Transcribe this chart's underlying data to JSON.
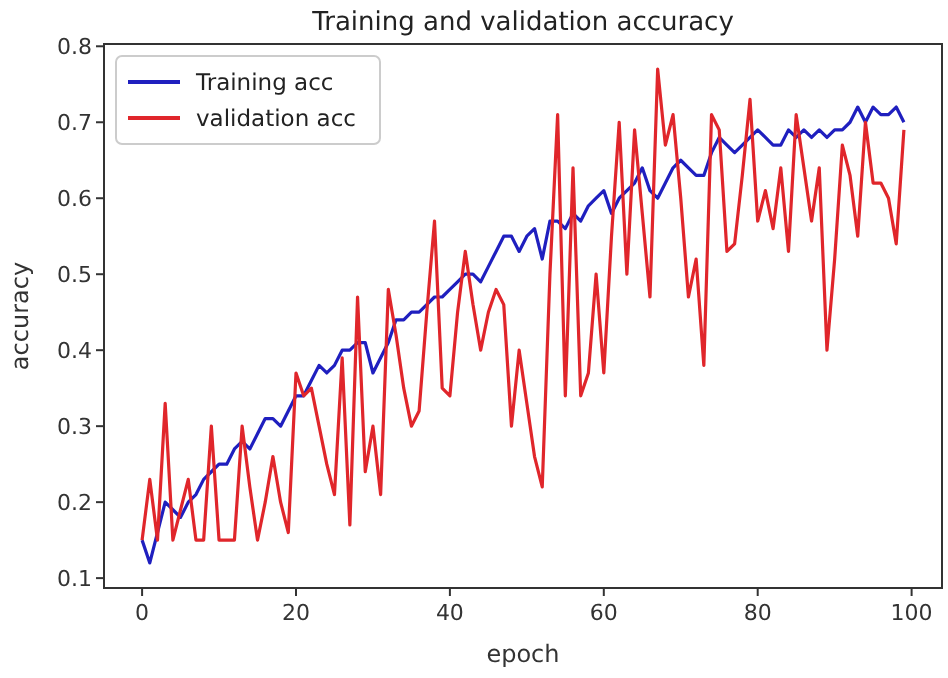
{
  "chart_data": {
    "type": "line",
    "title": "Training and validation accuracy",
    "xlabel": "epoch",
    "ylabel": "accuracy",
    "x": [
      0,
      1,
      2,
      3,
      4,
      5,
      6,
      7,
      8,
      9,
      10,
      11,
      12,
      13,
      14,
      15,
      16,
      17,
      18,
      19,
      20,
      21,
      22,
      23,
      24,
      25,
      26,
      27,
      28,
      29,
      30,
      31,
      32,
      33,
      34,
      35,
      36,
      37,
      38,
      39,
      40,
      41,
      42,
      43,
      44,
      45,
      46,
      47,
      48,
      49,
      50,
      51,
      52,
      53,
      54,
      55,
      56,
      57,
      58,
      59,
      60,
      61,
      62,
      63,
      64,
      65,
      66,
      67,
      68,
      69,
      70,
      71,
      72,
      73,
      74,
      75,
      76,
      77,
      78,
      79,
      80,
      81,
      82,
      83,
      84,
      85,
      86,
      87,
      88,
      89,
      90,
      91,
      92,
      93,
      94,
      95,
      96,
      97,
      98,
      99
    ],
    "series": [
      {
        "name": "Training acc",
        "color": "#1f1fbf",
        "values": [
          0.15,
          0.12,
          0.16,
          0.2,
          0.19,
          0.18,
          0.2,
          0.21,
          0.23,
          0.24,
          0.25,
          0.25,
          0.27,
          0.28,
          0.27,
          0.29,
          0.31,
          0.31,
          0.3,
          0.32,
          0.34,
          0.34,
          0.36,
          0.38,
          0.37,
          0.38,
          0.4,
          0.4,
          0.41,
          0.41,
          0.37,
          0.39,
          0.41,
          0.44,
          0.44,
          0.45,
          0.45,
          0.46,
          0.47,
          0.47,
          0.48,
          0.49,
          0.5,
          0.5,
          0.49,
          0.51,
          0.53,
          0.55,
          0.55,
          0.53,
          0.55,
          0.56,
          0.52,
          0.57,
          0.57,
          0.56,
          0.58,
          0.57,
          0.59,
          0.6,
          0.61,
          0.58,
          0.6,
          0.61,
          0.62,
          0.64,
          0.61,
          0.6,
          0.62,
          0.64,
          0.65,
          0.64,
          0.63,
          0.63,
          0.66,
          0.68,
          0.67,
          0.66,
          0.67,
          0.68,
          0.69,
          0.68,
          0.67,
          0.67,
          0.69,
          0.68,
          0.69,
          0.68,
          0.69,
          0.68,
          0.69,
          0.69,
          0.7,
          0.72,
          0.7,
          0.72,
          0.71,
          0.71,
          0.72,
          0.7
        ]
      },
      {
        "name": "validation acc",
        "color": "#e0262b",
        "values": [
          0.15,
          0.23,
          0.15,
          0.33,
          0.15,
          0.19,
          0.23,
          0.15,
          0.15,
          0.3,
          0.15,
          0.15,
          0.15,
          0.3,
          0.22,
          0.15,
          0.2,
          0.26,
          0.2,
          0.16,
          0.37,
          0.34,
          0.35,
          0.3,
          0.25,
          0.21,
          0.39,
          0.17,
          0.47,
          0.24,
          0.3,
          0.21,
          0.48,
          0.42,
          0.35,
          0.3,
          0.32,
          0.45,
          0.57,
          0.35,
          0.34,
          0.45,
          0.53,
          0.46,
          0.4,
          0.45,
          0.48,
          0.46,
          0.3,
          0.4,
          0.33,
          0.26,
          0.22,
          0.5,
          0.71,
          0.34,
          0.64,
          0.34,
          0.37,
          0.5,
          0.37,
          0.55,
          0.7,
          0.5,
          0.69,
          0.58,
          0.47,
          0.77,
          0.67,
          0.71,
          0.6,
          0.47,
          0.52,
          0.38,
          0.71,
          0.69,
          0.53,
          0.54,
          0.63,
          0.73,
          0.57,
          0.61,
          0.56,
          0.64,
          0.53,
          0.71,
          0.64,
          0.57,
          0.64,
          0.4,
          0.52,
          0.67,
          0.63,
          0.55,
          0.7,
          0.62,
          0.62,
          0.6,
          0.54,
          0.69
        ]
      }
    ],
    "xlim": [
      -4.95,
      103.95
    ],
    "ylim": [
      0.087,
      0.803
    ],
    "xticks": [
      0,
      20,
      40,
      60,
      80,
      100
    ],
    "yticks": [
      0.1,
      0.2,
      0.3,
      0.4,
      0.5,
      0.6,
      0.7,
      0.8
    ],
    "legend": "top left",
    "grid": false
  }
}
